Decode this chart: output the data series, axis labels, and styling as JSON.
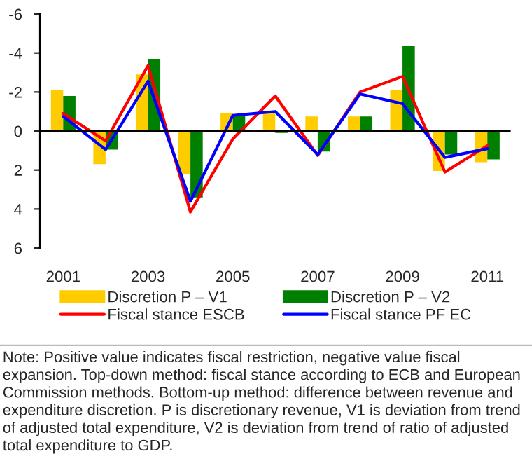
{
  "chart_data": {
    "type": "bar",
    "categories": [
      "2001",
      null,
      "2003",
      null,
      "2005",
      null,
      "2007",
      null,
      "2009",
      null,
      "2011"
    ],
    "series": [
      {
        "name": "Discretion P – V1",
        "color": "#ffcc00",
        "values": [
          -2.1,
          1.7,
          -2.9,
          2.2,
          -0.9,
          -0.9,
          -0.75,
          -0.75,
          -2.1,
          2.05,
          1.6
        ]
      },
      {
        "name": "Discretion P – V2",
        "color": "#008000",
        "values": [
          -1.8,
          0.95,
          -3.7,
          3.4,
          -0.8,
          0.1,
          1.05,
          -0.75,
          -4.35,
          1.2,
          1.45
        ]
      },
      {
        "name": "Fiscal stance ESCB",
        "type": "line",
        "color": "#ff0000",
        "values": [
          -0.9,
          0.5,
          -3.35,
          4.15,
          0.4,
          -1.8,
          1.25,
          -2.0,
          -2.8,
          2.1,
          0.75
        ]
      },
      {
        "name": "Fiscal stance PF EC",
        "type": "line",
        "color": "#0000ff",
        "values": [
          -0.75,
          0.95,
          -2.55,
          3.6,
          -0.8,
          -1.0,
          1.2,
          -1.9,
          -1.4,
          1.35,
          0.9
        ]
      }
    ],
    "ylim": [
      6,
      -6
    ],
    "yticks": [
      -6,
      -4,
      -2,
      0,
      2,
      4,
      6
    ],
    "legend": "bottom",
    "marker": "none",
    "line_style": "solid",
    "annotations": [
      "Note: Positive value indicates fiscal restriction, negative value fiscal expansion. Top-down method: fiscal stance according to ECB and European Commission methods. Bottom-up method: difference between revenue and expenditure discretion. P is discretionary revenue, V1 is deviation from trend of adjusted total expenditure, V2 is deviation from trend of ratio of adjusted total expenditure to GDP."
    ]
  }
}
